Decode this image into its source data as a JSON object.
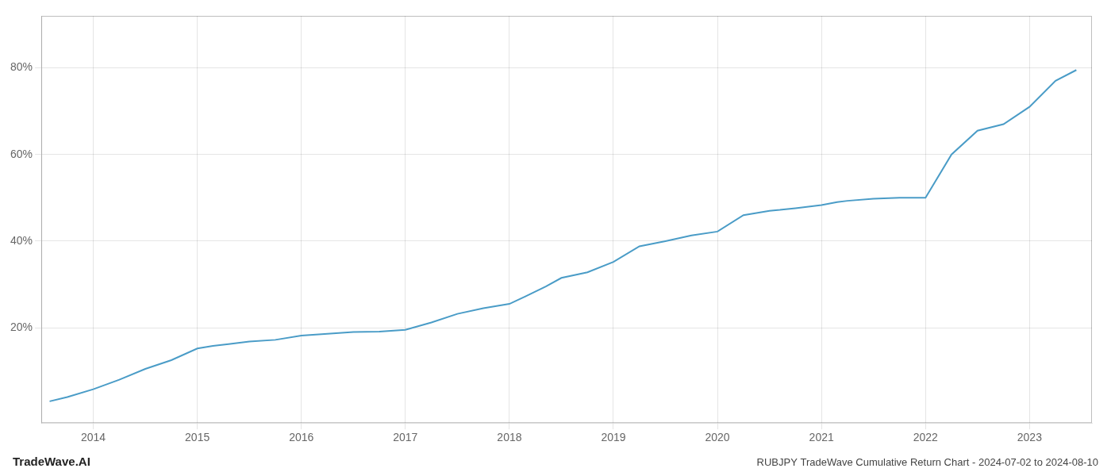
{
  "chart_data": {
    "type": "line",
    "title": "RUBJPY TradeWave Cumulative Return Chart - 2024-07-02 to 2024-08-10",
    "annotations": [
      "TradeWave.AI"
    ],
    "x": [
      2013.58,
      2013.75,
      2014.0,
      2014.25,
      2014.5,
      2014.75,
      2015.0,
      2015.15,
      2015.3,
      2015.5,
      2015.75,
      2016.0,
      2016.25,
      2016.5,
      2016.75,
      2017.0,
      2017.25,
      2017.5,
      2017.75,
      2018.0,
      2018.15,
      2018.35,
      2018.5,
      2018.75,
      2019.0,
      2019.25,
      2019.5,
      2019.75,
      2020.0,
      2020.25,
      2020.5,
      2020.6,
      2020.75,
      2021.0,
      2021.15,
      2021.25,
      2021.5,
      2021.75,
      2022.0,
      2022.25,
      2022.5,
      2022.75,
      2023.0,
      2023.25,
      2023.45
    ],
    "values": [
      0.03,
      0.04,
      0.058,
      0.08,
      0.105,
      0.125,
      0.152,
      0.158,
      0.162,
      0.168,
      0.172,
      0.182,
      0.186,
      0.19,
      0.191,
      0.195,
      0.212,
      0.232,
      0.245,
      0.255,
      0.272,
      0.295,
      0.315,
      0.328,
      0.352,
      0.388,
      0.4,
      0.413,
      0.422,
      0.46,
      0.47,
      0.472,
      0.476,
      0.483,
      0.49,
      0.493,
      0.498,
      0.5,
      0.5,
      0.6,
      0.655,
      0.67,
      0.71,
      0.77,
      0.795
    ],
    "color": "#4a9cc7",
    "xlim": [
      2013.5,
      2023.6
    ],
    "ylim": [
      -0.02,
      0.92
    ],
    "xticks": [
      2014,
      2015,
      2016,
      2017,
      2018,
      2019,
      2020,
      2021,
      2022,
      2023
    ],
    "yticks": [
      {
        "value": 0.2,
        "label": "20%"
      },
      {
        "value": 0.4,
        "label": "40%"
      },
      {
        "value": 0.6,
        "label": "60%"
      },
      {
        "value": 0.8,
        "label": "80%"
      }
    ],
    "grid": true
  }
}
